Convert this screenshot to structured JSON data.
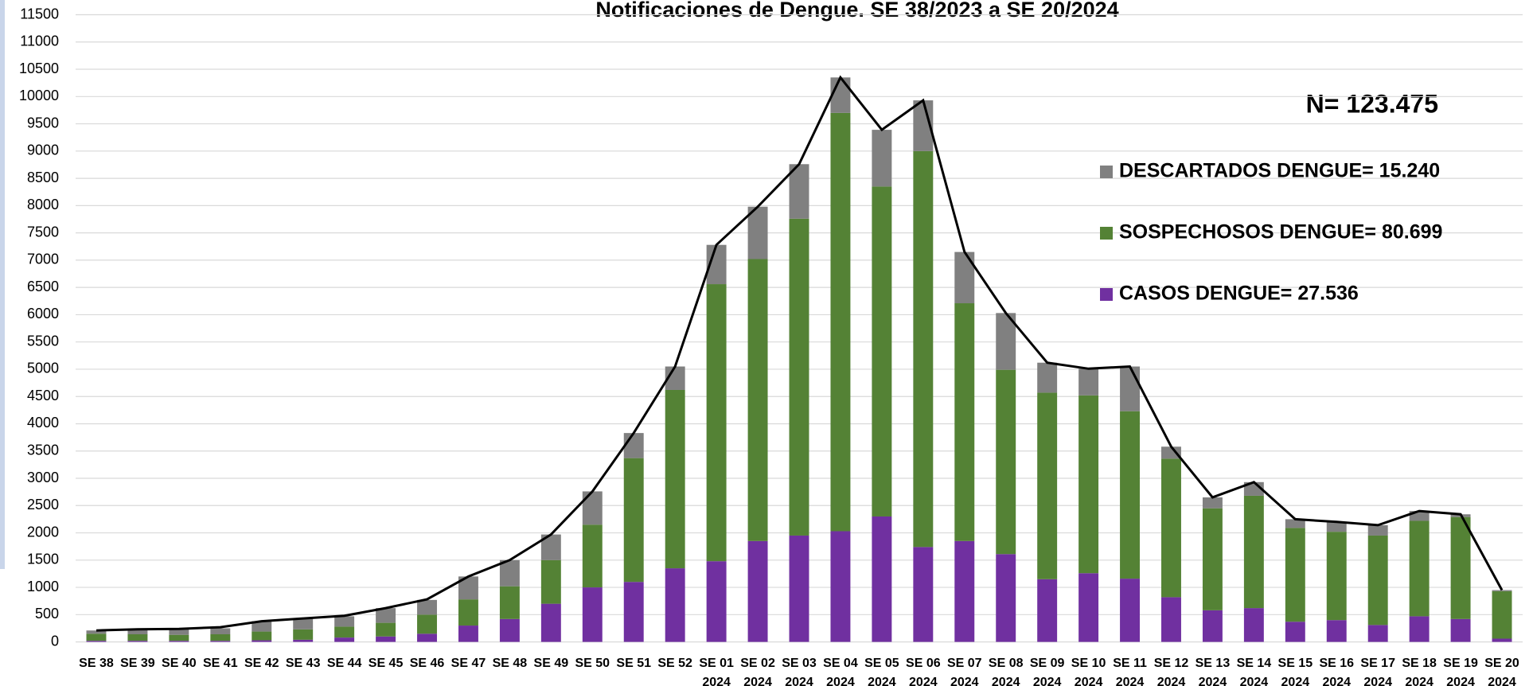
{
  "chart_data": {
    "type": "stacked_bar",
    "title": "Notificaciones de Dengue. SE  38/2023 a SE  20/2024",
    "annotation": "N= 123.475",
    "categories": [
      [
        "SE 38"
      ],
      [
        "SE 39"
      ],
      [
        "SE 40"
      ],
      [
        "SE 41"
      ],
      [
        "SE 42"
      ],
      [
        "SE 43"
      ],
      [
        "SE 44"
      ],
      [
        "SE 45"
      ],
      [
        "SE 46"
      ],
      [
        "SE 47"
      ],
      [
        "SE 48"
      ],
      [
        "SE 49"
      ],
      [
        "SE 50"
      ],
      [
        "SE 51"
      ],
      [
        "SE 52"
      ],
      [
        "SE 01",
        "2024"
      ],
      [
        "SE 02",
        "2024"
      ],
      [
        "SE 03",
        "2024"
      ],
      [
        "SE 04",
        "2024"
      ],
      [
        "SE 05",
        "2024"
      ],
      [
        "SE 06",
        "2024"
      ],
      [
        "SE 07",
        "2024"
      ],
      [
        "SE 08",
        "2024"
      ],
      [
        "SE 09",
        "2024"
      ],
      [
        "SE 10",
        "2024"
      ],
      [
        "SE 11",
        "2024"
      ],
      [
        "SE 12",
        "2024"
      ],
      [
        "SE 13",
        "2024"
      ],
      [
        "SE 14",
        "2024"
      ],
      [
        "SE 15",
        "2024"
      ],
      [
        "SE 16",
        "2024"
      ],
      [
        "SE 17",
        "2024"
      ],
      [
        "SE 18",
        "2024"
      ],
      [
        "SE 19",
        "2024"
      ],
      [
        "SE 20",
        "2024"
      ]
    ],
    "series": [
      {
        "name": "CASOS DENGUE= 27.536",
        "color": "#7030a0",
        "values": [
          20,
          20,
          20,
          20,
          30,
          40,
          80,
          100,
          150,
          300,
          420,
          700,
          1000,
          1100,
          1350,
          1480,
          1850,
          1950,
          2030,
          2300,
          1740,
          1850,
          1610,
          1150,
          1260,
          1160,
          820,
          580,
          620,
          370,
          400,
          310,
          470,
          420,
          60
        ]
      },
      {
        "name": "SOSPECHOSOS DENGUE= 80.699",
        "color": "#548235",
        "values": [
          130,
          120,
          110,
          120,
          160,
          190,
          200,
          250,
          350,
          480,
          600,
          800,
          1150,
          2270,
          3270,
          5080,
          5170,
          5810,
          7670,
          6050,
          7260,
          4360,
          3380,
          3420,
          3260,
          3070,
          2540,
          1870,
          2060,
          1720,
          1620,
          1640,
          1750,
          1870,
          870
        ]
      },
      {
        "name": "DESCARTADOS DENGUE= 15.240",
        "color": "#808080",
        "values": [
          60,
          80,
          100,
          110,
          190,
          200,
          190,
          270,
          270,
          420,
          480,
          470,
          610,
          460,
          430,
          720,
          960,
          1000,
          650,
          1040,
          930,
          940,
          1040,
          550,
          490,
          820,
          220,
          200,
          250,
          160,
          180,
          190,
          180,
          50,
          20
        ]
      }
    ],
    "total_line": {
      "color": "#000000",
      "values": [
        210,
        230,
        240,
        270,
        380,
        430,
        480,
        620,
        780,
        1200,
        1500,
        1970,
        2760,
        3830,
        5050,
        7280,
        7980,
        8760,
        10350,
        9390,
        9930,
        7150,
        6030,
        5120,
        5010,
        5050,
        3580,
        2650,
        2930,
        2250,
        2200,
        2140,
        2400,
        2340,
        950
      ]
    },
    "ylim": [
      0,
      11500
    ],
    "yticks": [
      0,
      500,
      1000,
      1500,
      2000,
      2500,
      3000,
      3500,
      4000,
      4500,
      5000,
      5500,
      6000,
      6500,
      7000,
      7500,
      8000,
      8500,
      9000,
      9500,
      10000,
      10500,
      11000,
      11500
    ],
    "grid": true
  }
}
